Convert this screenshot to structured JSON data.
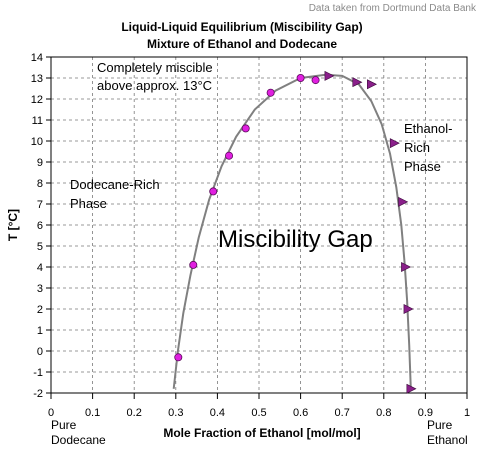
{
  "source_note": "Data taken from Dortmund Data Bank",
  "chart_data": {
    "type": "scatter",
    "title": "Liquid-Liquid Equilibrium (Miscibility Gap)",
    "subtitle": "Mixture of Ethanol and Dodecane",
    "xlabel": "Mole Fraction of Ethanol [mol/mol]",
    "ylabel": "T [°C]",
    "xlim": [
      0,
      1
    ],
    "ylim": [
      -2,
      14
    ],
    "x_ticks": [
      "0",
      "0.1",
      "0.2",
      "0.3",
      "0.4",
      "0.5",
      "0.6",
      "0.7",
      "0.8",
      "0.9",
      "1"
    ],
    "y_ticks": [
      "-2",
      "-1",
      "0",
      "1",
      "2",
      "3",
      "4",
      "5",
      "6",
      "7",
      "8",
      "9",
      "10",
      "11",
      "12",
      "13",
      "14"
    ],
    "grid": true,
    "x_end_labels": {
      "left": [
        "Pure",
        "Dodecane"
      ],
      "right": [
        "Pure",
        "Ethanol"
      ]
    },
    "annotations": {
      "miscible_note": [
        "Completely miscible",
        "above approx. 13°C"
      ],
      "dodecane_phase": [
        "Dodecane-Rich",
        "Phase"
      ],
      "ethanol_phase": [
        "Ethanol-",
        "Rich",
        "Phase"
      ],
      "gap_label": "Miscibility Gap"
    },
    "series": [
      {
        "marker": "circle",
        "color": "#e020e0",
        "x": [
          0.306,
          0.342,
          0.39,
          0.428,
          0.468,
          0.528,
          0.6,
          0.636
        ],
        "y": [
          -0.3,
          4.1,
          7.6,
          9.3,
          10.6,
          12.3,
          13.0,
          12.9
        ]
      },
      {
        "marker": "triangle-right",
        "color": "#8a1f8a",
        "x": [
          0.668,
          0.735,
          0.77,
          0.825,
          0.845,
          0.852,
          0.858,
          0.865
        ],
        "y": [
          13.1,
          12.8,
          12.7,
          9.9,
          7.1,
          4.0,
          2.0,
          -1.8
        ]
      }
    ],
    "fit_curve": {
      "color": "#808080",
      "x": [
        0.295,
        0.305,
        0.318,
        0.335,
        0.355,
        0.38,
        0.41,
        0.445,
        0.49,
        0.54,
        0.6,
        0.66,
        0.7,
        0.74,
        0.77,
        0.795,
        0.815,
        0.83,
        0.842,
        0.85,
        0.856,
        0.861,
        0.865
      ],
      "y": [
        -1.8,
        0.0,
        1.8,
        3.6,
        5.4,
        7.2,
        8.8,
        10.2,
        11.5,
        12.4,
        13.0,
        13.15,
        13.1,
        12.7,
        11.9,
        10.8,
        9.4,
        7.8,
        6.0,
        4.2,
        2.4,
        0.3,
        -1.8
      ]
    }
  }
}
